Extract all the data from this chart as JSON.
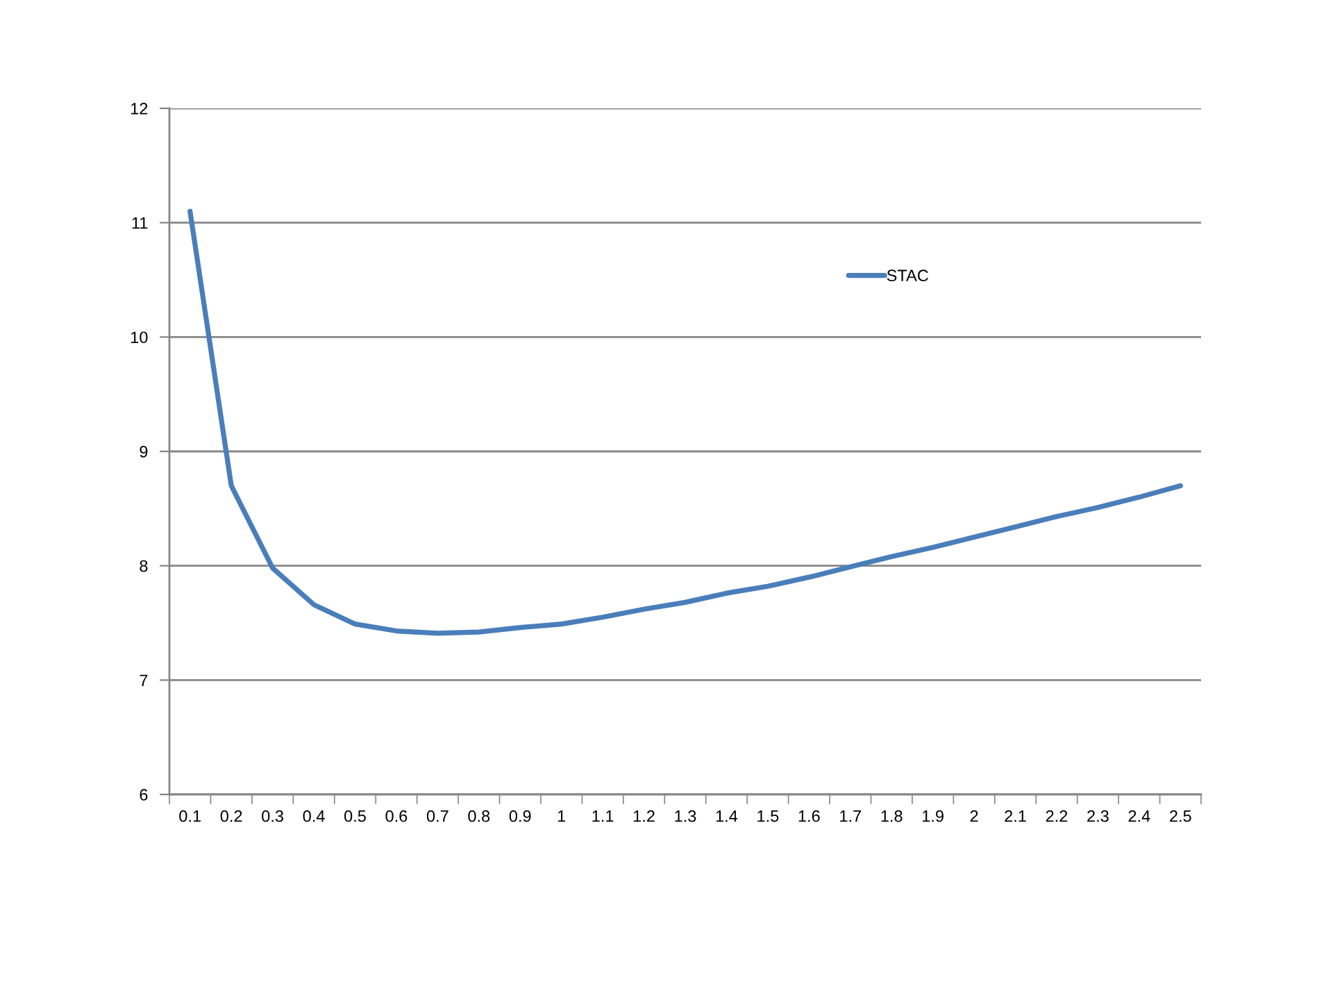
{
  "chart_data": {
    "type": "line",
    "categories": [
      "0.1",
      "0.2",
      "0.3",
      "0.4",
      "0.5",
      "0.6",
      "0.7",
      "0.8",
      "0.9",
      "1",
      "1.1",
      "1.2",
      "1.3",
      "1.4",
      "1.5",
      "1.6",
      "1.7",
      "1.8",
      "1.9",
      "2",
      "2.1",
      "2.2",
      "2.3",
      "2.4",
      "2.5"
    ],
    "series": [
      {
        "name": "STAC",
        "color": "#4a7ebb",
        "values": [
          11.1,
          8.7,
          7.98,
          7.66,
          7.49,
          7.43,
          7.41,
          7.42,
          7.46,
          7.49,
          7.55,
          7.62,
          7.68,
          7.76,
          7.82,
          7.9,
          7.99,
          8.08,
          8.16,
          8.25,
          8.34,
          8.43,
          8.51,
          8.6,
          8.7
        ]
      }
    ],
    "ylim": [
      6,
      12
    ],
    "yticks": [
      6,
      7,
      8,
      9,
      10,
      11,
      12
    ],
    "grid": "y",
    "legend": "top right",
    "marker": "none",
    "line_style": "solid"
  }
}
